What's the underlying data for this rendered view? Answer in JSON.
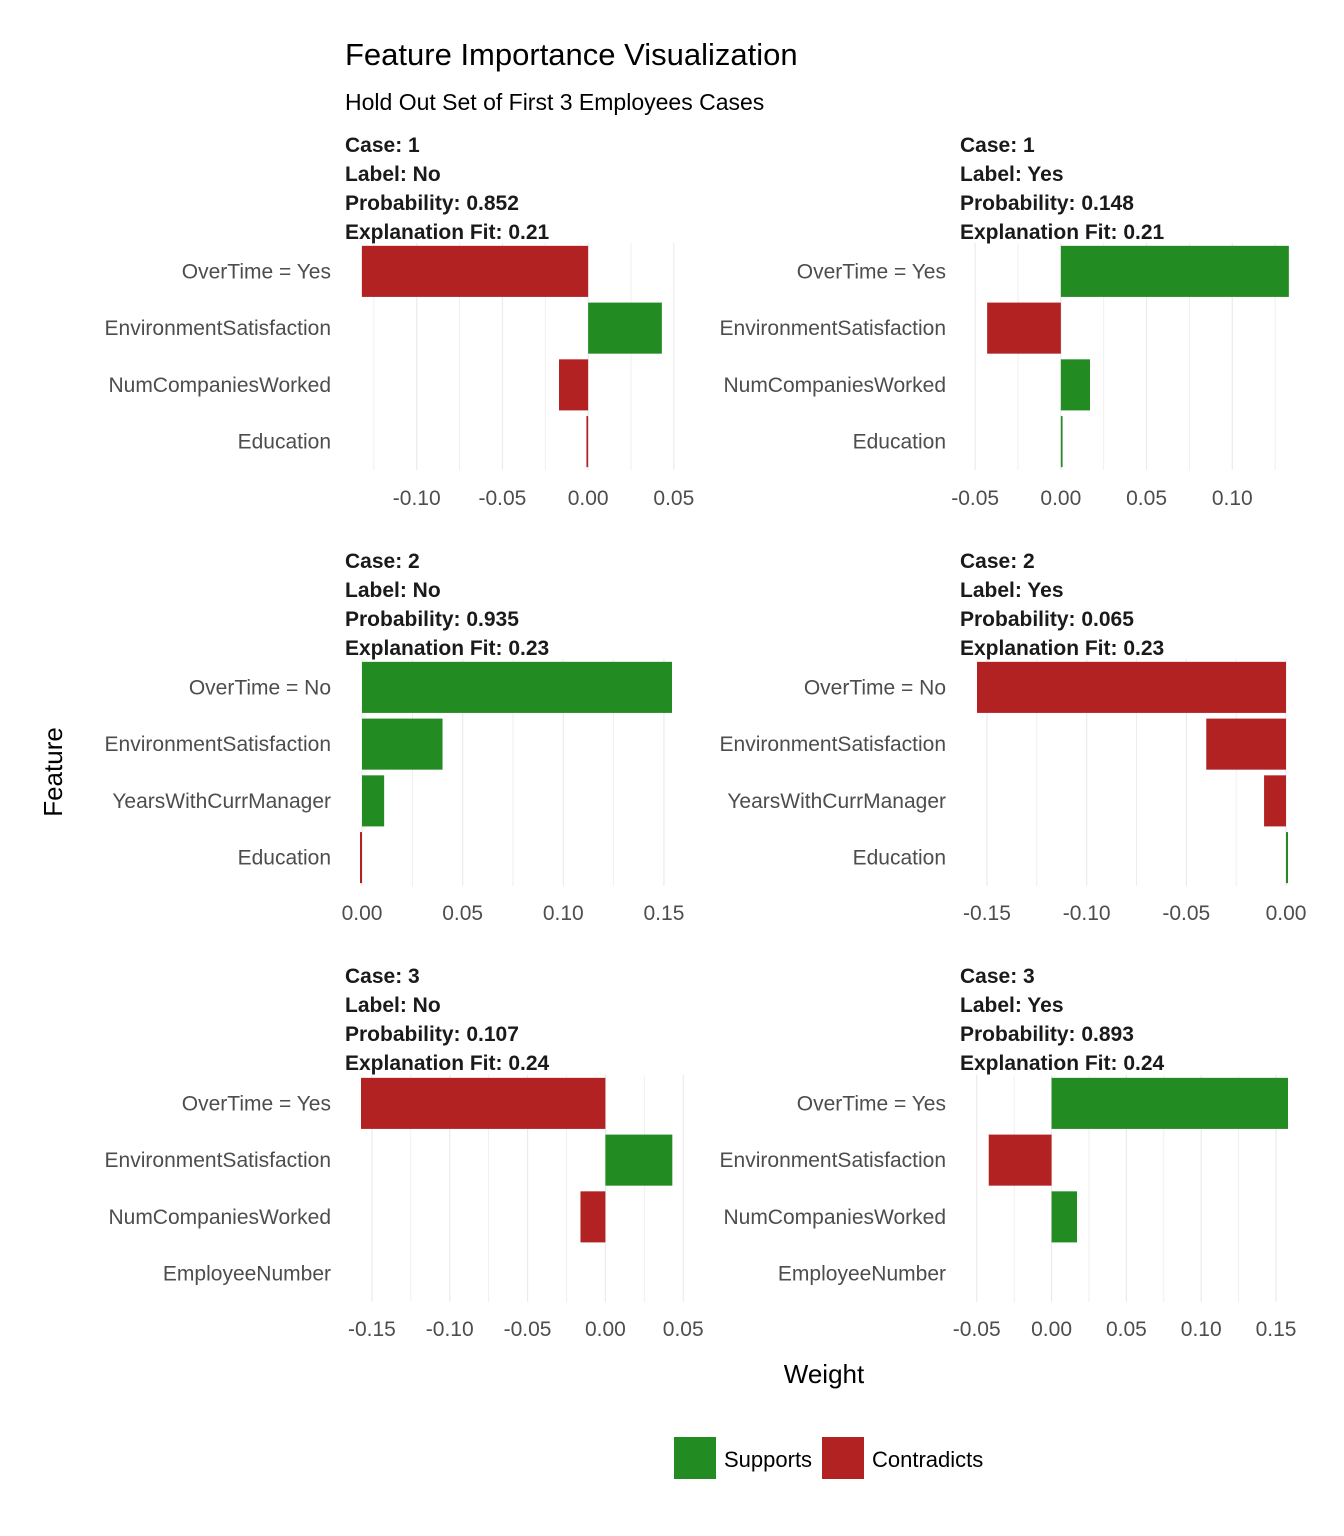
{
  "chart_data": {
    "type": "bar",
    "orientation": "horizontal",
    "title": "Feature Importance Visualization",
    "subtitle": "Hold Out Set of First 3 Employees Cases",
    "xlabel": "Weight",
    "ylabel": "Feature",
    "grid": true,
    "legend": {
      "placement": "bottom",
      "entries": [
        {
          "label": "Supports",
          "color": "#228B22"
        },
        {
          "label": "Contradicts",
          "color": "#B22222"
        }
      ]
    },
    "panels": [
      {
        "header": [
          "Case: 1",
          "Label: No",
          "Probability: 0.852",
          "Explanation Fit: 0.21"
        ],
        "features": [
          "OverTime = Yes",
          "EnvironmentSatisfaction",
          "NumCompaniesWorked",
          "Education"
        ],
        "values": [
          -0.132,
          0.043,
          -0.017,
          -0.001
        ],
        "xlim": [
          -0.1325,
          0.0495
        ],
        "xticks": [
          -0.1,
          -0.05,
          0.0,
          0.05
        ],
        "xtick_labels": [
          "-0.10",
          "-0.05",
          "0.00",
          "0.05"
        ]
      },
      {
        "header": [
          "Case: 1",
          "Label: Yes",
          "Probability: 0.148",
          "Explanation Fit: 0.21"
        ],
        "features": [
          "OverTime = Yes",
          "EnvironmentSatisfaction",
          "NumCompaniesWorked",
          "Education"
        ],
        "values": [
          0.133,
          -0.043,
          0.017,
          0.001
        ],
        "xlim": [
          -0.0495,
          0.1325
        ],
        "xticks": [
          -0.05,
          0.0,
          0.05,
          0.1
        ],
        "xtick_labels": [
          "-0.05",
          "0.00",
          "0.05",
          "0.10"
        ]
      },
      {
        "header": [
          "Case: 2",
          "Label: No",
          "Probability: 0.935",
          "Explanation Fit: 0.23"
        ],
        "features": [
          "OverTime = No",
          "EnvironmentSatisfaction",
          "YearsWithCurrManager",
          "Education"
        ],
        "values": [
          0.154,
          0.04,
          0.011,
          -0.001
        ],
        "xlim": [
          -0.0005,
          0.1545
        ],
        "xticks": [
          0.0,
          0.05,
          0.1,
          0.15
        ],
        "xtick_labels": [
          "0.00",
          "0.05",
          "0.10",
          "0.15"
        ]
      },
      {
        "header": [
          "Case: 2",
          "Label: Yes",
          "Probability: 0.065",
          "Explanation Fit: 0.23"
        ],
        "features": [
          "OverTime = No",
          "EnvironmentSatisfaction",
          "YearsWithCurrManager",
          "Education"
        ],
        "values": [
          -0.155,
          -0.04,
          -0.011,
          0.001
        ],
        "xlim": [
          -0.1555,
          0.0005
        ],
        "xticks": [
          -0.15,
          -0.1,
          -0.05,
          0.0
        ],
        "xtick_labels": [
          "-0.15",
          "-0.10",
          "-0.05",
          "0.00"
        ]
      },
      {
        "header": [
          "Case: 3",
          "Label: No",
          "Probability: 0.107",
          "Explanation Fit: 0.24"
        ],
        "features": [
          "OverTime = Yes",
          "EnvironmentSatisfaction",
          "NumCompaniesWorked",
          "EmployeeNumber"
        ],
        "values": [
          -0.157,
          0.043,
          -0.016,
          0.0
        ],
        "xlim": [
          -0.157,
          0.0505
        ],
        "xticks": [
          -0.15,
          -0.1,
          -0.05,
          0.0,
          0.05
        ],
        "xtick_labels": [
          "-0.15",
          "-0.10",
          "-0.05",
          "0.00",
          "0.05"
        ]
      },
      {
        "header": [
          "Case: 3",
          "Label: Yes",
          "Probability: 0.893",
          "Explanation Fit: 0.24"
        ],
        "features": [
          "OverTime = Yes",
          "EnvironmentSatisfaction",
          "NumCompaniesWorked",
          "EmployeeNumber"
        ],
        "values": [
          0.158,
          -0.042,
          0.017,
          0.0
        ],
        "xlim": [
          -0.0505,
          0.158
        ],
        "xticks": [
          -0.05,
          0.0,
          0.05,
          0.1,
          0.15
        ],
        "xtick_labels": [
          "-0.05",
          "0.00",
          "0.05",
          "0.10",
          "0.15"
        ]
      }
    ]
  }
}
